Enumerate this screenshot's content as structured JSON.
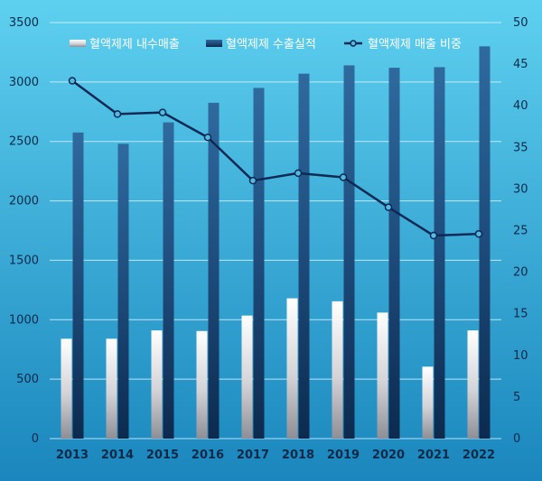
{
  "chart_data": {
    "type": "bar",
    "categories": [
      "2013",
      "2014",
      "2015",
      "2016",
      "2017",
      "2018",
      "2019",
      "2020",
      "2021",
      "2022"
    ],
    "series": [
      {
        "name": "혈액제제 내수매출",
        "kind": "bar",
        "axis": "left",
        "color": "#e6e6ea",
        "values": [
          840,
          840,
          910,
          905,
          1035,
          1180,
          1155,
          1060,
          605,
          910
        ]
      },
      {
        "name": "혈액제제 수출실적",
        "kind": "bar",
        "axis": "left",
        "color": "#1e4f80",
        "values": [
          2575,
          2480,
          2660,
          2825,
          2950,
          3070,
          3140,
          3120,
          3125,
          3300
        ]
      },
      {
        "name": "혈액제제 매출 비중",
        "kind": "line",
        "axis": "right",
        "color": "#0c2a55",
        "values": [
          43.0,
          39.0,
          39.2,
          36.2,
          31.0,
          31.9,
          31.4,
          27.8,
          24.4,
          24.6
        ]
      }
    ],
    "ylim_left": [
      0,
      3500
    ],
    "yticks_left": [
      0,
      500,
      1000,
      1500,
      2000,
      2500,
      3000,
      3500
    ],
    "ylim_right": [
      0,
      50
    ],
    "yticks_right": [
      0,
      5,
      10,
      15,
      20,
      25,
      30,
      35,
      40,
      45,
      50
    ],
    "title": "",
    "xlabel": "",
    "ylabel_left": "",
    "ylabel_right": "",
    "grid": true,
    "legend_position": "top",
    "colors": {
      "background_top": "#5ed0ef",
      "background_bottom": "#1a86bd",
      "gridline": "#d6f1fb",
      "marker_fill": "#58b9e0"
    }
  }
}
